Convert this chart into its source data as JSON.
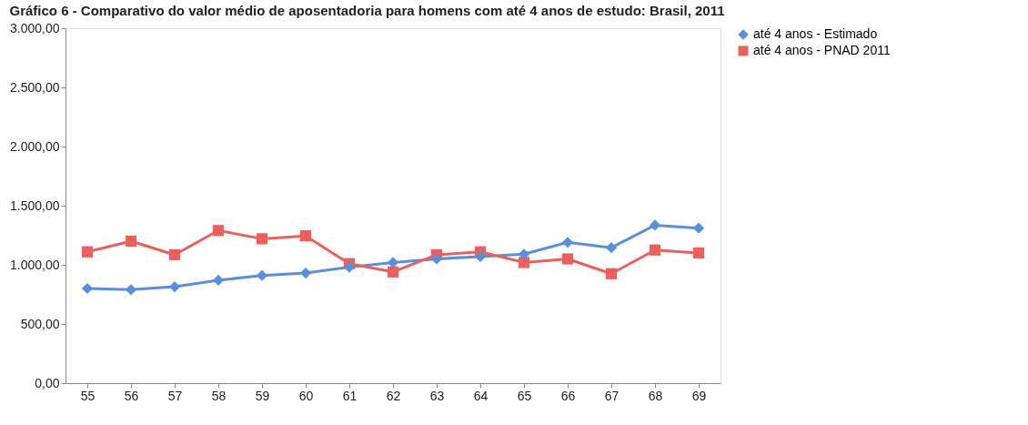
{
  "chart_data": {
    "type": "line",
    "title": "Gráfico 6 - Comparativo do valor médio de aposentadoria para homens com até 4 anos de estudo: Brasil, 2011",
    "categories": [
      "55",
      "56",
      "57",
      "58",
      "59",
      "60",
      "61",
      "62",
      "63",
      "64",
      "65",
      "66",
      "67",
      "68",
      "69"
    ],
    "series": [
      {
        "name": "até 4 anos - Estimado",
        "color": "#5b8fd9",
        "marker": "diamond",
        "values": [
          800,
          790,
          815,
          870,
          910,
          930,
          980,
          1020,
          1050,
          1070,
          1090,
          1190,
          1145,
          1335,
          1310
        ]
      },
      {
        "name": "até 4 anos - PNAD 2011",
        "color": "#e8615f",
        "marker": "square",
        "values": [
          1110,
          1200,
          1085,
          1290,
          1220,
          1245,
          1010,
          940,
          1085,
          1110,
          1020,
          1050,
          925,
          1125,
          1100
        ]
      }
    ],
    "ylim": [
      0,
      3000
    ],
    "yticks": [
      {
        "value": 0,
        "label": "0,00"
      },
      {
        "value": 500,
        "label": "500,00"
      },
      {
        "value": 1000,
        "label": "1.000,00"
      },
      {
        "value": 1500,
        "label": "1.500,00"
      },
      {
        "value": 2000,
        "label": "2.000,00"
      },
      {
        "value": 2500,
        "label": "2.500,00"
      },
      {
        "value": 3000,
        "label": "3.000,00"
      }
    ],
    "grid": false,
    "legend": "right",
    "line_style": "solid"
  }
}
